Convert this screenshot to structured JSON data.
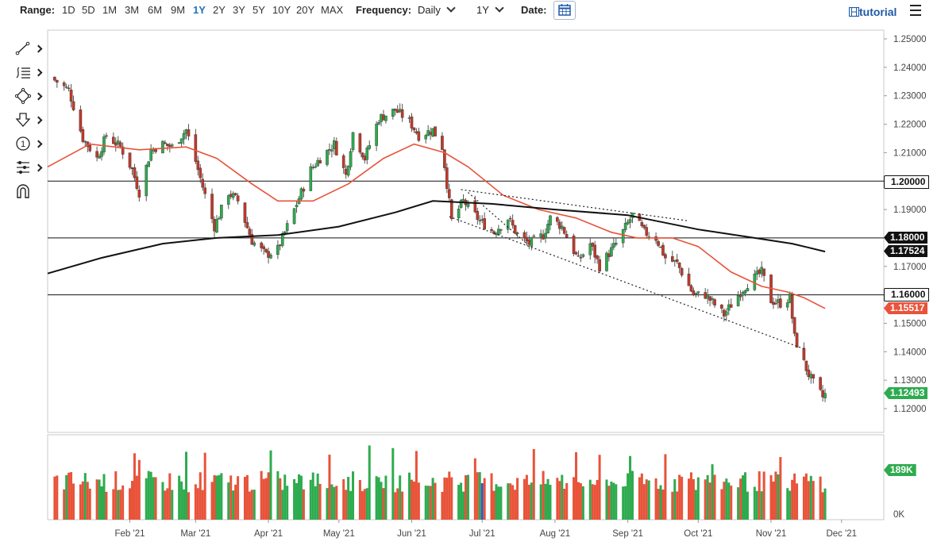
{
  "toolbar": {
    "range_label": "Range:",
    "ranges": [
      "1D",
      "5D",
      "1M",
      "3M",
      "6M",
      "9M",
      "1Y",
      "2Y",
      "3Y",
      "5Y",
      "10Y",
      "20Y",
      "MAX"
    ],
    "active_range": "1Y",
    "frequency_label": "Frequency:",
    "frequency_value": "Daily",
    "period_value": "1Y",
    "date_label": "Date:",
    "tutorial_label": "tutorial",
    "accent_color": "#1e73be"
  },
  "drawing_tools": [
    "trend-line-icon",
    "fibonacci-icon",
    "shapes-icon",
    "arrow-down-icon",
    "number-marker-icon",
    "measure-tools-icon",
    "magnet-icon"
  ],
  "price_tags": {
    "level_1": "1.20000",
    "level_2": "1.18000",
    "level_3": "1.17524",
    "level_4": "1.16000",
    "level_5": "1.15517",
    "level_6": "1.12493",
    "volume": "189K"
  },
  "chart_data": {
    "type": "candlestick",
    "y_ticks": [
      "1.25000",
      "1.24000",
      "1.23000",
      "1.22000",
      "1.21000",
      "1.19000",
      "1.17000",
      "1.15000",
      "1.14000",
      "1.13000",
      "1.12000"
    ],
    "ylim": [
      1.1165,
      1.2535
    ],
    "x_ticks": [
      "Feb '21",
      "Mar '21",
      "Apr '21",
      "May '21",
      "Jun '21",
      "Jul '21",
      "Aug '21",
      "Sep '21",
      "Oct '21",
      "Nov '21",
      "Dec '21"
    ],
    "x_range": [
      "2020-12-28",
      "2021-12-19"
    ],
    "horizontal_levels": [
      1.2,
      1.18,
      1.16
    ],
    "price_anchors": [
      [
        "2020-12-31",
        1.2355
      ],
      [
        "2021-01-06",
        1.232
      ],
      [
        "2021-01-12",
        1.215
      ],
      [
        "2021-01-18",
        1.208
      ],
      [
        "2021-01-22",
        1.216
      ],
      [
        "2021-01-28",
        1.212
      ],
      [
        "2021-02-02",
        1.204
      ],
      [
        "2021-02-05",
        1.196
      ],
      [
        "2021-02-10",
        1.211
      ],
      [
        "2021-02-15",
        1.213
      ],
      [
        "2021-02-19",
        1.212
      ],
      [
        "2021-02-25",
        1.218
      ],
      [
        "2021-03-01",
        1.207
      ],
      [
        "2021-03-05",
        1.195
      ],
      [
        "2021-03-09",
        1.184
      ],
      [
        "2021-03-15",
        1.196
      ],
      [
        "2021-03-19",
        1.193
      ],
      [
        "2021-03-25",
        1.179
      ],
      [
        "2021-03-31",
        1.174
      ],
      [
        "2021-04-05",
        1.176
      ],
      [
        "2021-04-12",
        1.19
      ],
      [
        "2021-04-19",
        1.204
      ],
      [
        "2021-04-23",
        1.208
      ],
      [
        "2021-04-29",
        1.213
      ],
      [
        "2021-05-04",
        1.202
      ],
      [
        "2021-05-07",
        1.217
      ],
      [
        "2021-05-12",
        1.208
      ],
      [
        "2021-05-18",
        1.222
      ],
      [
        "2021-05-25",
        1.225
      ],
      [
        "2021-05-31",
        1.221
      ],
      [
        "2021-06-04",
        1.216
      ],
      [
        "2021-06-10",
        1.218
      ],
      [
        "2021-06-14",
        1.212
      ],
      [
        "2021-06-16",
        1.199
      ],
      [
        "2021-06-18",
        1.186
      ],
      [
        "2021-06-23",
        1.193
      ],
      [
        "2021-06-30",
        1.186
      ],
      [
        "2021-07-06",
        1.182
      ],
      [
        "2021-07-12",
        1.187
      ],
      [
        "2021-07-16",
        1.181
      ],
      [
        "2021-07-21",
        1.178
      ],
      [
        "2021-07-27",
        1.181
      ],
      [
        "2021-07-30",
        1.187
      ],
      [
        "2021-08-04",
        1.184
      ],
      [
        "2021-08-11",
        1.172
      ],
      [
        "2021-08-16",
        1.178
      ],
      [
        "2021-08-20",
        1.17
      ],
      [
        "2021-08-27",
        1.178
      ],
      [
        "2021-09-03",
        1.188
      ],
      [
        "2021-09-08",
        1.182
      ],
      [
        "2021-09-13",
        1.18
      ],
      [
        "2021-09-17",
        1.173
      ],
      [
        "2021-09-22",
        1.171
      ],
      [
        "2021-09-29",
        1.16
      ],
      [
        "2021-10-04",
        1.16
      ],
      [
        "2021-10-12",
        1.153
      ],
      [
        "2021-10-18",
        1.16
      ],
      [
        "2021-10-22",
        1.164
      ],
      [
        "2021-10-28",
        1.168
      ],
      [
        "2021-11-01",
        1.158
      ],
      [
        "2021-11-05",
        1.157
      ],
      [
        "2021-11-09",
        1.159
      ],
      [
        "2021-11-11",
        1.145
      ],
      [
        "2021-11-15",
        1.136
      ],
      [
        "2021-11-17",
        1.132
      ],
      [
        "2021-11-19",
        1.129
      ],
      [
        "2021-11-23",
        1.124
      ],
      [
        "2021-11-24",
        1.1249
      ]
    ],
    "series": [
      {
        "name": "",
        "color": "#e8533a",
        "values": [
          [
            "2020-12-28",
            1.205
          ],
          [
            "2021-01-15",
            1.213
          ],
          [
            "2021-02-05",
            1.211
          ],
          [
            "2021-02-25",
            1.212
          ],
          [
            "2021-03-10",
            1.208
          ],
          [
            "2021-03-25",
            1.199
          ],
          [
            "2021-04-05",
            1.193
          ],
          [
            "2021-04-20",
            1.193
          ],
          [
            "2021-05-05",
            1.199
          ],
          [
            "2021-05-20",
            1.208
          ],
          [
            "2021-06-02",
            1.213
          ],
          [
            "2021-06-15",
            1.21
          ],
          [
            "2021-06-25",
            1.205
          ],
          [
            "2021-07-10",
            1.195
          ],
          [
            "2021-07-25",
            1.19
          ],
          [
            "2021-08-10",
            1.187
          ],
          [
            "2021-08-25",
            1.182
          ],
          [
            "2021-09-05",
            1.18
          ],
          [
            "2021-09-20",
            1.18
          ],
          [
            "2021-10-01",
            1.177
          ],
          [
            "2021-10-15",
            1.168
          ],
          [
            "2021-10-28",
            1.163
          ],
          [
            "2021-11-08",
            1.161
          ],
          [
            "2021-11-15",
            1.159
          ],
          [
            "2021-11-24",
            1.1552
          ]
        ]
      },
      {
        "name": "",
        "color": "#111111",
        "values": [
          [
            "2020-12-28",
            1.1675
          ],
          [
            "2021-01-20",
            1.173
          ],
          [
            "2021-02-15",
            1.178
          ],
          [
            "2021-03-10",
            1.18
          ],
          [
            "2021-04-05",
            1.181
          ],
          [
            "2021-05-01",
            1.184
          ],
          [
            "2021-05-25",
            1.189
          ],
          [
            "2021-06-10",
            1.193
          ],
          [
            "2021-07-05",
            1.192
          ],
          [
            "2021-08-01",
            1.19
          ],
          [
            "2021-09-01",
            1.188
          ],
          [
            "2021-10-01",
            1.183
          ],
          [
            "2021-10-25",
            1.18
          ],
          [
            "2021-11-10",
            1.178
          ],
          [
            "2021-11-24",
            1.1752
          ]
        ]
      }
    ],
    "trendlines": [
      {
        "style": "dotted",
        "from": [
          "2021-06-17",
          1.1875
        ],
        "to": [
          "2021-11-15",
          1.141
        ]
      },
      {
        "style": "dotted",
        "from": [
          "2021-06-22",
          1.197
        ],
        "to": [
          "2021-09-27",
          1.186
        ]
      },
      {
        "style": "dotted",
        "from": [
          "2021-06-25",
          1.196
        ],
        "to": [
          "2021-07-20",
          1.178
        ]
      }
    ],
    "volume": {
      "ylim": [
        0,
        260
      ],
      "y_ticks": [
        "0K"
      ],
      "up_color": "#2eab4f",
      "down_color": "#e8533a",
      "highlight_color": "#3a55c8",
      "typical": 120
    }
  }
}
